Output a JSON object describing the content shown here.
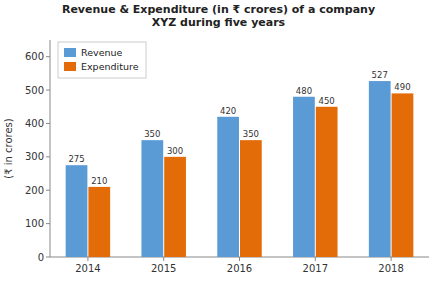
{
  "chart_data": {
    "type": "bar",
    "title": "Revenue & Expenditure (in ₹ crores) of a company\nXYZ during five years",
    "categories": [
      "2014",
      "2015",
      "2016",
      "2017",
      "2018"
    ],
    "series": [
      {
        "name": "Revenue",
        "color": "#5B9BD5",
        "values": [
          275,
          350,
          420,
          480,
          527
        ]
      },
      {
        "name": "Expenditure",
        "color": "#E36C09",
        "values": [
          210,
          300,
          350,
          450,
          490
        ]
      }
    ],
    "ylabel": "(₹ in crores)",
    "ylim": [
      0,
      650
    ],
    "yticks": [
      0,
      100,
      200,
      300,
      400,
      500,
      600
    ],
    "grid": false,
    "legend": "upper left",
    "data_labels": true
  }
}
